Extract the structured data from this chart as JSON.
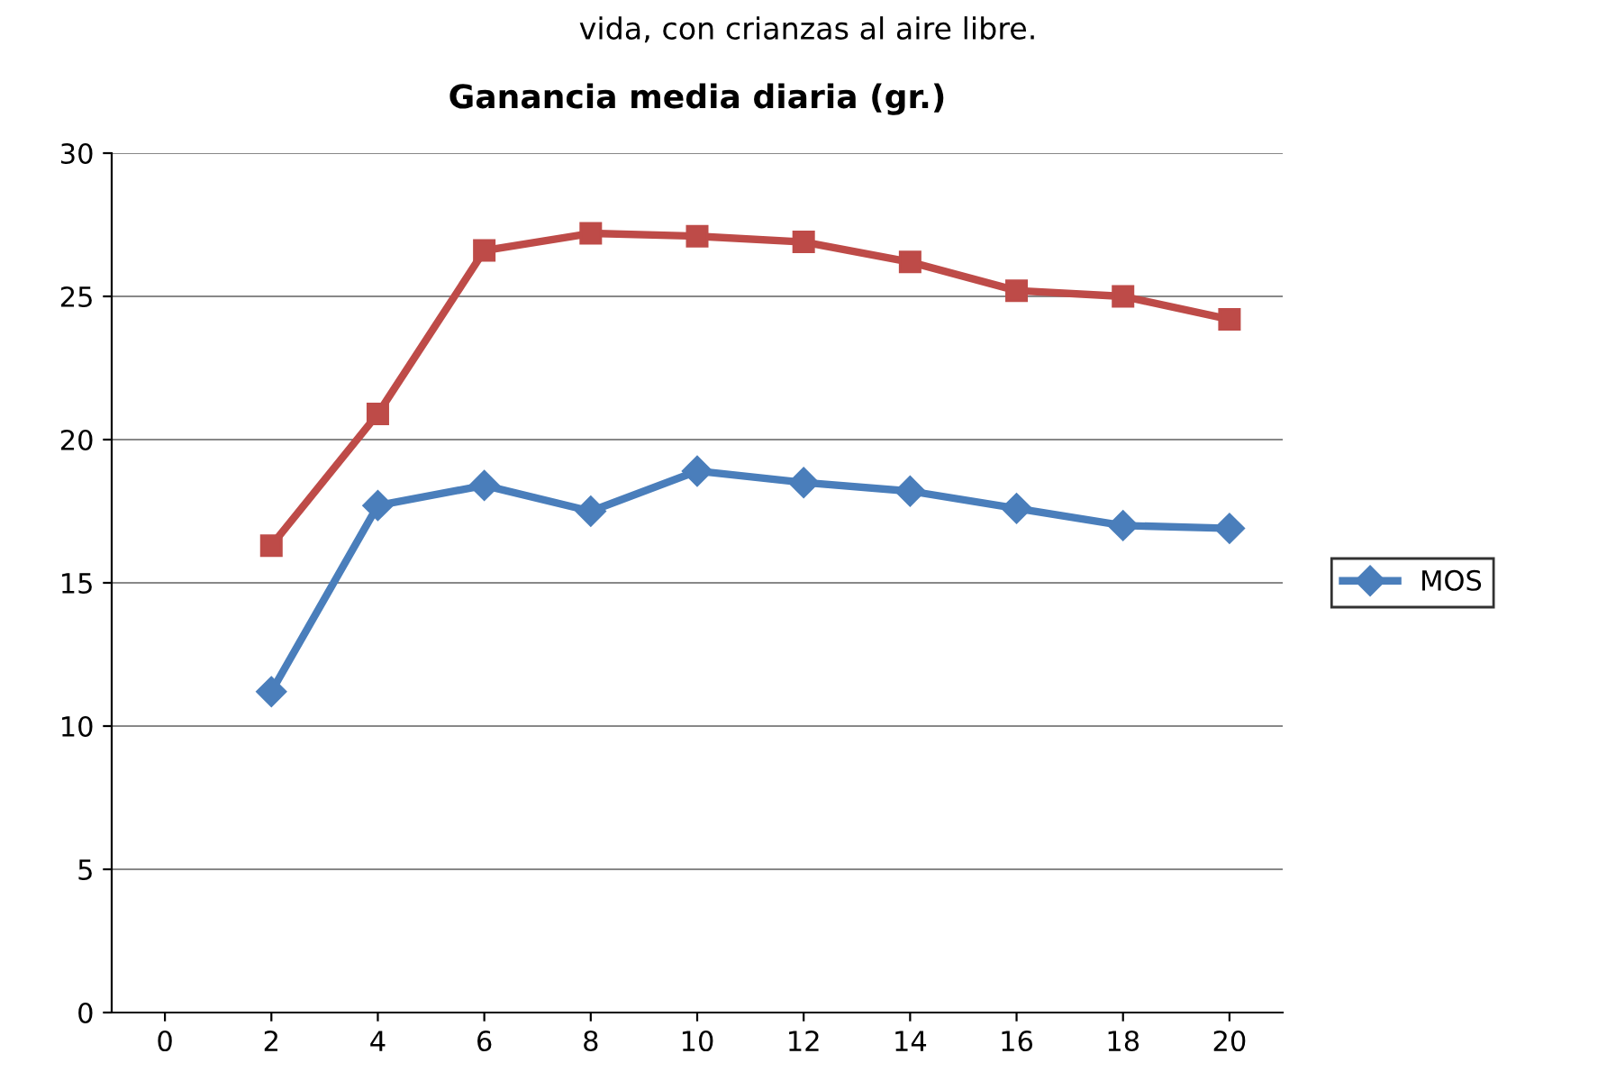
{
  "chart_data": {
    "type": "line",
    "title": "Ganancia media diaria (gr.)",
    "annotations": [
      "vida, con crianzas al aire libre."
    ],
    "categories": [
      "0",
      "2",
      "4",
      "6",
      "8",
      "10",
      "12",
      "14",
      "16",
      "18",
      "20"
    ],
    "series": [
      {
        "name": "MOS",
        "color": "#4a7ebb",
        "marker": "diamond",
        "values": [
          null,
          11.2,
          17.7,
          18.4,
          17.5,
          18.9,
          18.5,
          18.2,
          17.6,
          17.0,
          16.9
        ]
      },
      {
        "color": "#be4b48",
        "marker": "square",
        "values": [
          null,
          16.3,
          20.9,
          26.6,
          27.2,
          27.1,
          26.9,
          26.2,
          25.2,
          25.0,
          24.2
        ]
      }
    ],
    "ylim": [
      0,
      30
    ],
    "yticks": [
      0,
      5,
      10,
      15,
      20,
      25,
      30
    ],
    "grid": "y",
    "legend": "right",
    "line_style": "solid"
  }
}
